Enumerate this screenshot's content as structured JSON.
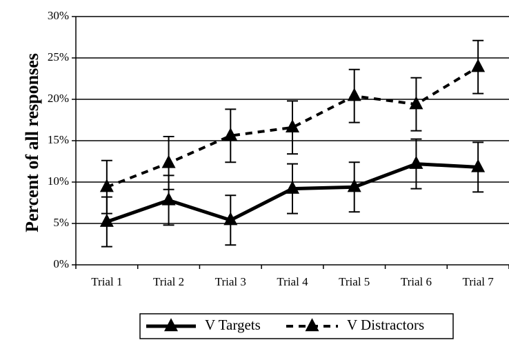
{
  "chart_data": {
    "type": "line",
    "title": "",
    "xlabel": "",
    "ylabel": "Percent of all responses",
    "categories": [
      "Trial 1",
      "Trial 2",
      "Trial 3",
      "Trial 4",
      "Trial 5",
      "Trial 6",
      "Trial 7"
    ],
    "y_ticks": [
      "0%",
      "5%",
      "10%",
      "15%",
      "20%",
      "25%",
      "30%"
    ],
    "ylim": [
      0,
      30
    ],
    "grid": true,
    "legend_position": "bottom",
    "series": [
      {
        "name": "V Targets",
        "line_style": "solid",
        "marker": "triangle",
        "color": "#000000",
        "values": [
          5.2,
          7.8,
          5.4,
          9.2,
          9.4,
          12.2,
          11.8
        ],
        "error": [
          3.0,
          3.0,
          3.0,
          3.0,
          3.0,
          3.0,
          3.0
        ]
      },
      {
        "name": "V Distractors",
        "line_style": "dashed",
        "marker": "triangle",
        "color": "#000000",
        "values": [
          9.4,
          12.3,
          15.6,
          16.6,
          20.4,
          19.4,
          23.9
        ],
        "error": [
          3.2,
          3.2,
          3.2,
          3.2,
          3.2,
          3.2,
          3.2
        ]
      }
    ]
  }
}
